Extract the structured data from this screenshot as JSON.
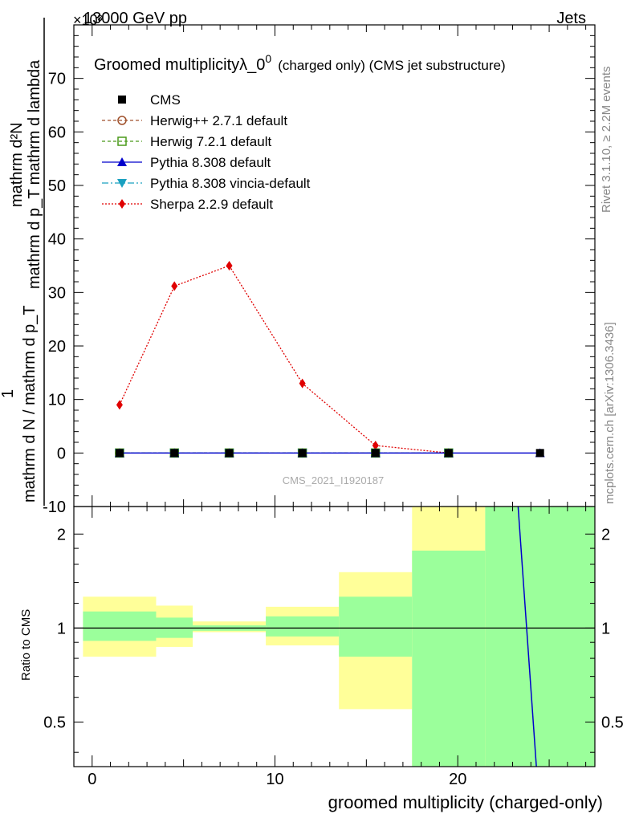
{
  "header": {
    "beam_label": "13000 GeV pp",
    "category_label": "Jets",
    "exponent_label": "×10³"
  },
  "side_labels": {
    "rivet": "Rivet 3.1.10, ≥ 2.2M events",
    "mcplots": "mcplots.cern.ch [arXiv:1306.3436]"
  },
  "chart_data": [
    {
      "type": "line",
      "title": "Groomed multiplicity",
      "title_lambda": "λ_0",
      "title_sup": "0",
      "title_suffix": "(charged only) (CMS jet substructure)",
      "ylabel": "1 / mathrm d N / mathrm d p_T mathrm d N / mathrm d p_T mathrm d lambda",
      "ylabel_top": "mathrm d²N",
      "ylabel_top2": "mathrm d p_T mathrm d lambda",
      "ylabel_one": "1",
      "ylabel_bottom": "mathrm d N / mathrm d p_T",
      "xlim": [
        -1,
        27.5
      ],
      "ylim": [
        -10,
        80
      ],
      "yticks": [
        -10,
        0,
        10,
        20,
        30,
        40,
        50,
        60,
        70
      ],
      "watermark": "CMS_2021_I1920187",
      "legend_position": "top-left",
      "series": [
        {
          "name": "CMS",
          "style": "data",
          "color": "#000000",
          "x": [
            1.5,
            4.5,
            7.5,
            11.5,
            15.5,
            19.5,
            24.5
          ],
          "y": [
            0,
            0,
            0,
            0,
            0,
            0,
            0
          ]
        },
        {
          "name": "Herwig++ 2.7.1 default",
          "style": "herwigpp",
          "color": "#a0522d",
          "x": [
            1.5,
            4.5,
            7.5,
            11.5,
            15.5,
            19.5
          ],
          "y": [
            0,
            0,
            0,
            0,
            0,
            0
          ]
        },
        {
          "name": "Herwig 7.2.1 default",
          "style": "herwig7",
          "color": "#4a9a1a",
          "x": [
            1.5,
            4.5,
            7.5,
            11.5,
            15.5,
            19.5
          ],
          "y": [
            0,
            0,
            0,
            0,
            0,
            0
          ]
        },
        {
          "name": "Pythia 8.308 default",
          "style": "pythia",
          "color": "#0000cc",
          "x": [
            1.5,
            4.5,
            7.5,
            11.5,
            15.5,
            19.5,
            24.5
          ],
          "y": [
            0,
            0,
            0,
            0,
            0,
            0,
            0
          ]
        },
        {
          "name": "Pythia 8.308 vincia-default",
          "style": "vincia",
          "color": "#1aa0c0",
          "x": [
            1.5,
            4.5,
            7.5,
            11.5,
            15.5,
            19.5
          ],
          "y": [
            0,
            0,
            0,
            0,
            0,
            0
          ]
        },
        {
          "name": "Sherpa 2.2.9 default",
          "style": "sherpa",
          "color": "#e00000",
          "x": [
            1.5,
            4.5,
            7.5,
            11.5,
            15.5,
            19.5
          ],
          "y": [
            9.0,
            31.2,
            35.0,
            13.0,
            1.4,
            0
          ]
        }
      ]
    },
    {
      "type": "area",
      "ylabel": "Ratio to CMS",
      "xlabel": "groomed multiplicity (charged-only)",
      "xlim": [
        -1,
        27.5
      ],
      "ylim": [
        0.36,
        2.45
      ],
      "log_scale_y": true,
      "xticks": [
        0,
        10,
        20
      ],
      "yticks": [
        0.5,
        1,
        2
      ],
      "bands": [
        {
          "x0": -0.5,
          "x1": 3.5,
          "stat_lo": 0.91,
          "stat_hi": 1.13,
          "tot_lo": 0.81,
          "tot_hi": 1.26
        },
        {
          "x0": 3.5,
          "x1": 5.5,
          "stat_lo": 0.93,
          "stat_hi": 1.08,
          "tot_lo": 0.87,
          "tot_hi": 1.18
        },
        {
          "x0": 5.5,
          "x1": 9.5,
          "stat_lo": 0.98,
          "stat_hi": 1.02,
          "tot_lo": 0.97,
          "tot_hi": 1.05
        },
        {
          "x0": 9.5,
          "x1": 13.5,
          "stat_lo": 0.94,
          "stat_hi": 1.09,
          "tot_lo": 0.88,
          "tot_hi": 1.17
        },
        {
          "x0": 13.5,
          "x1": 17.5,
          "stat_lo": 0.81,
          "stat_hi": 1.26,
          "tot_lo": 0.55,
          "tot_hi": 1.51
        },
        {
          "x0": 17.5,
          "x1": 21.5,
          "stat_lo": 0.36,
          "stat_hi": 1.77,
          "tot_lo": 0.36,
          "tot_hi": 2.45
        },
        {
          "x0": 21.5,
          "x1": 27.5,
          "stat_lo": 0.36,
          "stat_hi": 2.45,
          "tot_lo": 0.36,
          "tot_hi": 2.45
        }
      ],
      "pythia_line": {
        "x": [
          23.3,
          24.3
        ],
        "y": [
          2.45,
          0.36
        ]
      },
      "colors": {
        "stat": "#9bff9b",
        "total": "#ffff99",
        "pythia": "#0000cc"
      }
    }
  ]
}
